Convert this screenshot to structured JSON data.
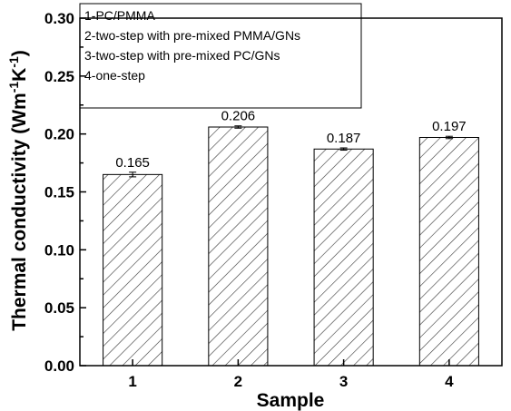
{
  "chart_data": {
    "type": "bar",
    "categories": [
      "1",
      "2",
      "3",
      "4"
    ],
    "values": [
      0.165,
      0.206,
      0.187,
      0.197
    ],
    "data_labels": [
      "0.165",
      "0.206",
      "0.187",
      "0.197"
    ],
    "error": [
      0.002,
      0.001,
      0.001,
      0.001
    ],
    "xlabel": "Sample",
    "ylabel_main": "Thermal conductivity (Wm",
    "ylabel_sup1": "-1",
    "ylabel_mid": "K",
    "ylabel_sup2": "-1",
    "ylabel_end": ")",
    "ylim": [
      0,
      0.3
    ],
    "yticks": [
      "0.00",
      "0.05",
      "0.10",
      "0.15",
      "0.20",
      "0.25",
      "0.30"
    ],
    "fill_pattern": "diagonal hatch",
    "bar_color": "#000000",
    "grid": false,
    "legend_position": "top-left",
    "legend_items": [
      "1-PC/PMMA",
      "2-two-step with pre-mixed PMMA/GNs",
      "3-two-step with pre-mixed PC/GNs",
      "4-one-step"
    ]
  }
}
